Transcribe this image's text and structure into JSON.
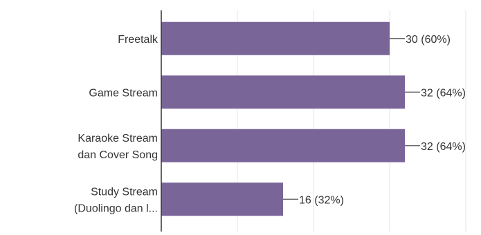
{
  "colors": {
    "bar": "#7A6599",
    "grid": "#E6E6E6",
    "axis": "#333333",
    "leader": "#555555",
    "text": "#333333"
  },
  "chart_data": {
    "type": "bar",
    "orientation": "horizontal",
    "categories": [
      [
        "Freetalk"
      ],
      [
        "Game Stream"
      ],
      [
        "Karaoke Stream",
        "dan Cover Song"
      ],
      [
        "Study Stream",
        "(Duolingo dan l..."
      ]
    ],
    "values": [
      30,
      32,
      32,
      16
    ],
    "percents": [
      60,
      64,
      64,
      32
    ],
    "value_labels": [
      "30 (60%)",
      "32 (64%)",
      "32 (64%)",
      "16 (32%)"
    ],
    "xlim": [
      0,
      40
    ],
    "grid": true,
    "legend": "none",
    "title": "",
    "xlabel": "",
    "ylabel": ""
  }
}
